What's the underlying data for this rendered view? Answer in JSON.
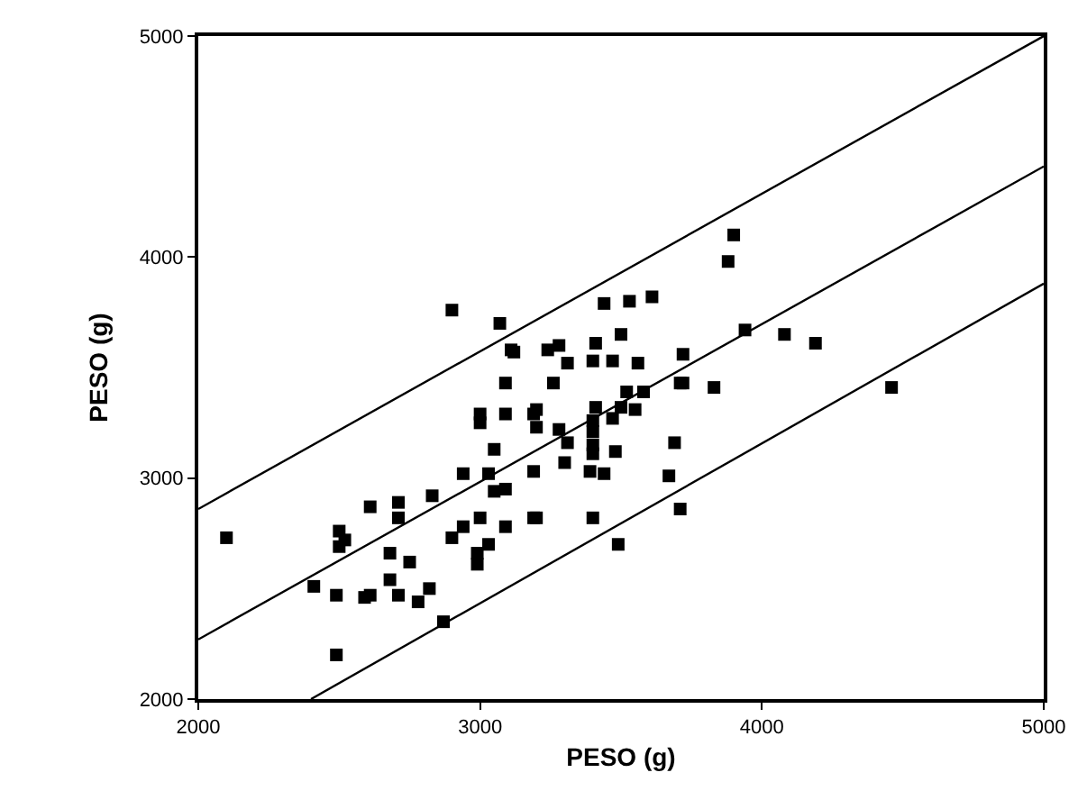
{
  "chart_data": {
    "type": "scatter",
    "xlabel": "PESO (g)",
    "ylabel": "PESO (g)",
    "xlim": [
      2000,
      5000
    ],
    "ylim": [
      2000,
      5000
    ],
    "xticks": [
      2000,
      3000,
      4000,
      5000
    ],
    "yticks": [
      2000,
      3000,
      4000,
      5000
    ],
    "marker": "square",
    "series": [
      {
        "color": "#000000",
        "x": [
          2900,
          3070,
          3110,
          3120,
          3090,
          3000,
          3000,
          3090,
          3190,
          3050,
          2940,
          3030,
          3090,
          3050,
          2610,
          2710,
          2830,
          2710,
          2100,
          2500,
          2520,
          2500,
          2940,
          3000,
          3090,
          2900,
          3030,
          2990,
          2990,
          2680,
          2750,
          2410,
          2490,
          2590,
          2610,
          2680,
          2710,
          2780,
          2820,
          2870,
          2490,
          3190,
          3900,
          3880,
          3440,
          3530,
          3610,
          3500,
          3940,
          4080,
          4190,
          3240,
          3280,
          3410,
          3310,
          3400,
          3470,
          3560,
          3720,
          3260,
          3520,
          3580,
          3710,
          3830,
          3200,
          3410,
          3500,
          3550,
          3470,
          3200,
          3280,
          3400,
          3400,
          3400,
          3310,
          3400,
          3480,
          3190,
          3300,
          3390,
          3440,
          3690,
          3670,
          3710,
          3200,
          3400,
          3490,
          4460,
          3720
        ],
        "values": [
          3760,
          3700,
          3580,
          3570,
          3430,
          3290,
          3250,
          3290,
          3290,
          3130,
          3020,
          3020,
          2950,
          2940,
          2870,
          2890,
          2920,
          2820,
          2730,
          2760,
          2720,
          2690,
          2780,
          2820,
          2780,
          2730,
          2700,
          2660,
          2610,
          2660,
          2620,
          2510,
          2470,
          2460,
          2470,
          2540,
          2470,
          2440,
          2500,
          2350,
          2200,
          2820,
          4100,
          3980,
          3790,
          3800,
          3820,
          3650,
          3670,
          3650,
          3610,
          3580,
          3600,
          3610,
          3520,
          3530,
          3530,
          3520,
          3560,
          3430,
          3390,
          3390,
          3430,
          3410,
          3310,
          3320,
          3320,
          3310,
          3270,
          3230,
          3220,
          3260,
          3210,
          3150,
          3160,
          3110,
          3120,
          3030,
          3070,
          3030,
          3020,
          3160,
          3010,
          2860,
          2820,
          2820,
          2700,
          3410,
          3430
        ]
      },
      {
        "type": "line",
        "color": "#000000",
        "marker": "none",
        "line_style": "solid",
        "x": [
          2000,
          5000
        ],
        "values": [
          2860,
          5000
        ]
      },
      {
        "type": "line",
        "color": "#000000",
        "marker": "none",
        "line_style": "solid",
        "x": [
          2000,
          5000
        ],
        "values": [
          2270,
          4410
        ]
      },
      {
        "type": "line",
        "color": "#000000",
        "marker": "none",
        "line_style": "solid",
        "x": [
          2400,
          5000
        ],
        "values": [
          2000,
          3880
        ]
      }
    ]
  }
}
